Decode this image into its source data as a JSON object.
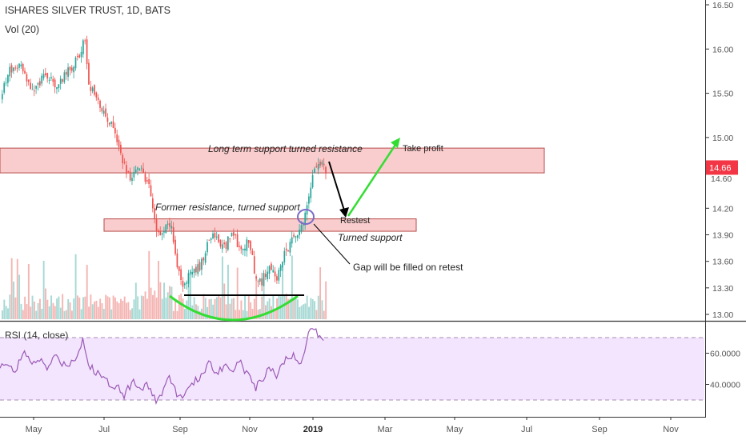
{
  "header": {
    "title": "ISHARES SILVER TRUST, 1D, BATS",
    "volume_label": "Vol (20)"
  },
  "price_axis": {
    "ticks": [
      "16.50",
      "16.00",
      "15.50",
      "15.00",
      "14.66",
      "14.60",
      "14.20",
      "13.90",
      "13.60",
      "13.30",
      "13.00"
    ],
    "last_price": "14.66",
    "last_price_color": "#f23645"
  },
  "rsi": {
    "label": "RSI (14, close)",
    "ticks": [
      "60.0000",
      "40.0000"
    ],
    "line_color": "#9b59b6",
    "band_color": "#f3e5fd"
  },
  "time_axis": {
    "labels": [
      "May",
      "Jul",
      "Sep",
      "Nov",
      "2019",
      "Mar",
      "May",
      "Jul",
      "Sep",
      "Nov"
    ]
  },
  "annotations": {
    "zone_upper": "Long term support turned resistance",
    "zone_lower": "Former resistance, turned support",
    "take_profit": "Take profit",
    "retest": "Restest",
    "turned_support": "Turned support",
    "gap_note": "Gap will be filled on retest"
  },
  "colors": {
    "up": "#26a69a",
    "down": "#ef5350",
    "zone_fill": "#f8c8c8",
    "zone_stroke": "#b84b4b",
    "arrow_green": "#33dd33",
    "arrow_black": "#000000",
    "circle": "#7b6cc9"
  }
}
